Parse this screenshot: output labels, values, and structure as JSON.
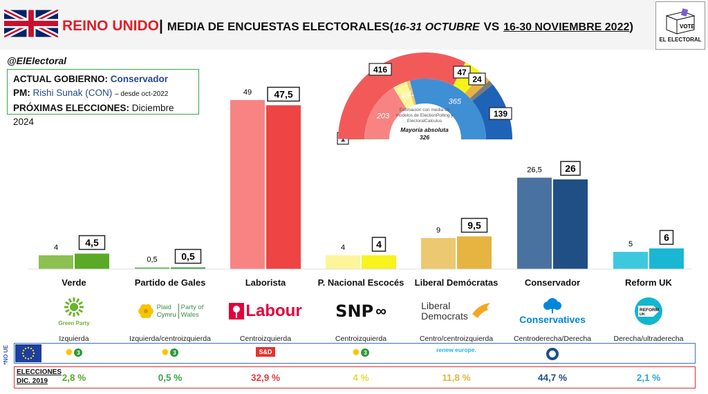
{
  "header": {
    "country": "REINO UNIDO",
    "separator": "|",
    "title": "MEDIA DE ENCUESTAS ELECTORALES",
    "paren_open": "(",
    "period_1": "16-31 OCTUBRE",
    "vs": "VS",
    "period_2": "16-30 NOVIEMBRE 2022",
    "paren_close": ")"
  },
  "brand": {
    "handle": "@ElElectoral",
    "logo_word": "VOTE",
    "logo_name": "EL ELECTORAL"
  },
  "government": {
    "gov_label": "ACTUAL GOBIERNO:",
    "gov_value": "Conservador",
    "pm_label": "PM:",
    "pm_value": "Rishi Sunak (CON)",
    "pm_note": "– desde oct-2022",
    "next_label": "PRÓXIMAS ELECCIONES:",
    "next_value": "Diciembre 2024"
  },
  "chart_data": {
    "type": "bar",
    "categories": [
      "Verde",
      "Partido de Gales",
      "Laborista",
      "P. Nacional Escocés",
      "Liberal Demócratas",
      "Conservador",
      "Reform UK"
    ],
    "series": [
      {
        "values": [
          4,
          0.5,
          49,
          4,
          9,
          26.5,
          5
        ],
        "labels": [
          "4",
          "0,5",
          "49",
          "4",
          "9",
          "26,5",
          "5"
        ]
      },
      {
        "values": [
          4.5,
          0.5,
          47.5,
          4,
          9.5,
          26,
          6
        ],
        "labels": [
          "4,5",
          "0,5",
          "47,5",
          "4",
          "9,5",
          "26",
          "6"
        ]
      }
    ],
    "colors_prev": [
      "#8cc152",
      "#6cbf6a",
      "#f78482",
      "#fdf59a",
      "#ecc870",
      "#4a72a0",
      "#3ec8de"
    ],
    "colors_curr": [
      "#5aaa28",
      "#3fa34d",
      "#ee4444",
      "#f8f31c",
      "#e6b441",
      "#204f86",
      "#1ab7d3"
    ],
    "ylim": [
      0,
      52
    ]
  },
  "seats": {
    "outer": [
      {
        "label": "1",
        "value": 1,
        "color": "#3fa34d"
      },
      {
        "label": "416",
        "value": 416,
        "color": "#f25a5a"
      },
      {
        "label": "47",
        "value": 47,
        "color": "#f7f31a"
      },
      {
        "label": "24",
        "value": 24,
        "color": "#e6b441"
      },
      {
        "label": "",
        "value": 12,
        "color": "#7b7b7b"
      },
      {
        "label": "139",
        "value": 139,
        "color": "#1f63b7"
      }
    ],
    "inner": [
      {
        "label": "1",
        "value": 1,
        "color": "#6cbf6a"
      },
      {
        "label": "203",
        "value": 203,
        "color": "#f78482"
      },
      {
        "label": "48",
        "value": 48,
        "color": "#fdf59a"
      },
      {
        "label": "11",
        "value": 11,
        "color": "#ecc870"
      },
      {
        "label": "365",
        "value": 365,
        "color": "#3f8fd4"
      }
    ],
    "note": "Estimación con media de modelos de ElectionPolling y ElectoralCalculus",
    "majority_label": "Mayoría absoluta",
    "majority_value": "326"
  },
  "parties": [
    {
      "logo": "Green Party",
      "ideology": "Izquierda"
    },
    {
      "logo_1": "Plaid",
      "logo_2": "Cymru",
      "logo_3": "Party of",
      "logo_4": "Wales",
      "ideology": "Izquierda/centroizquierda"
    },
    {
      "logo": "Labour",
      "ideology": "Centroizquierda"
    },
    {
      "logo": "SNP",
      "ideology": "Centroizquierda"
    },
    {
      "logo_1": "Liberal",
      "logo_2": "Democrats",
      "ideology": "Centro/centroizquierda"
    },
    {
      "logo": "Conservatives",
      "ideology": "Centroderecha/Derecha"
    },
    {
      "logo_1": "REFORM",
      "logo_2": "UK",
      "ideology": "Derecha/ultraderecha"
    }
  ],
  "eu": {
    "side_label": "*NO UE",
    "groups": [
      "3",
      "3",
      "S&D",
      "3",
      "renew europe.",
      "ECR",
      ""
    ]
  },
  "elections_2019": {
    "label_1": "ELECCIONES",
    "label_2": "DIC. 2019",
    "values": [
      "2,8 %",
      "0,5 %",
      "32,9 %",
      "4 %",
      "11,8 %",
      "44,7 %",
      "2,1 %"
    ],
    "colors": [
      "#5aaa28",
      "#3fa34d",
      "#e83a3a",
      "#f0d43a",
      "#e6b441",
      "#204f86",
      "#2aa6d8"
    ]
  }
}
